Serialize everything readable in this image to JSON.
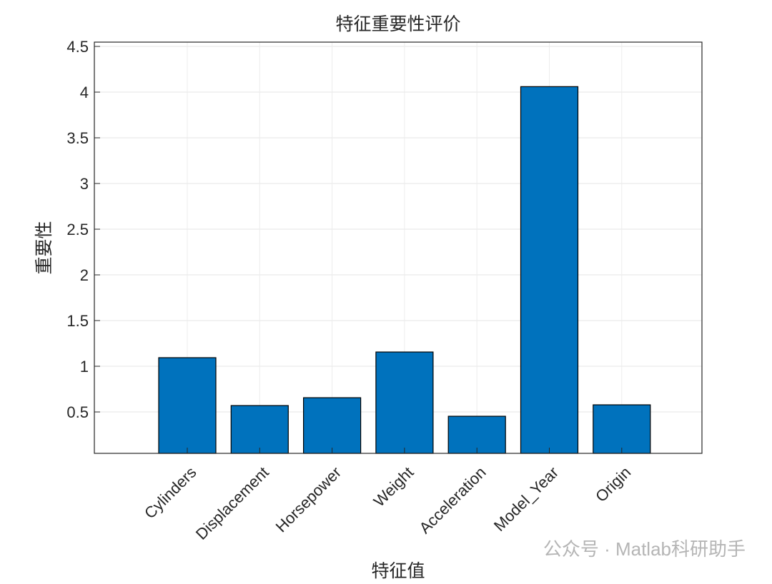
{
  "chart_data": {
    "type": "bar",
    "title": "特征重要性评价",
    "x_label": "特征值",
    "y_label": "重要性",
    "categories": [
      "Cylinders",
      "Displacement",
      "Horsepower",
      "Weight",
      "Acceleration",
      "Model_Year",
      "Origin"
    ],
    "values": [
      1.094,
      0.57,
      0.656,
      1.156,
      0.453,
      4.06,
      0.578
    ],
    "color": "#0072bd",
    "ylim": [
      0.047,
      4.547
    ],
    "yticks": [
      0.5,
      1,
      1.5,
      2,
      2.5,
      3,
      3.5,
      4,
      4.5
    ],
    "grid": true
  },
  "watermark": "公众号 · Matlab科研助手"
}
